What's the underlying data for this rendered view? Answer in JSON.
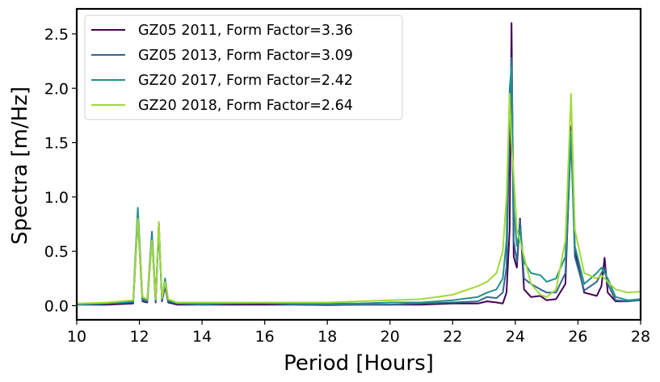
{
  "chart_data": {
    "type": "line",
    "xlabel": "Period [Hours]",
    "ylabel": "Spectra [m/Hz]",
    "xlim": [
      10,
      28
    ],
    "ylim": [
      -0.13,
      2.73
    ],
    "xticks": [
      10,
      12,
      14,
      16,
      18,
      20,
      22,
      24,
      26,
      28
    ],
    "xtick_labels": [
      "10",
      "12",
      "14",
      "16",
      "18",
      "20",
      "22",
      "24",
      "26",
      "28"
    ],
    "yticks": [
      0.0,
      0.5,
      1.0,
      1.5,
      2.0,
      2.5
    ],
    "ytick_labels": [
      "0.0",
      "0.5",
      "1.0",
      "1.5",
      "2.0",
      "2.5"
    ],
    "grid": false,
    "legend_position": "top-left",
    "series": [
      {
        "name": "GZ05 2011, Form Factor=3.36",
        "color": "#440154",
        "points": [
          [
            10,
            0.01
          ],
          [
            11,
            0.01
          ],
          [
            11.8,
            0.02
          ],
          [
            11.95,
            0.8
          ],
          [
            12.1,
            0.04
          ],
          [
            12.25,
            0.03
          ],
          [
            12.4,
            0.62
          ],
          [
            12.52,
            0.03
          ],
          [
            12.62,
            0.76
          ],
          [
            12.72,
            0.04
          ],
          [
            12.82,
            0.18
          ],
          [
            12.92,
            0.03
          ],
          [
            13.2,
            0.01
          ],
          [
            14,
            0.01
          ],
          [
            15,
            0.01
          ],
          [
            16,
            0.01
          ],
          [
            17,
            0.01
          ],
          [
            18,
            0.005
          ],
          [
            19,
            0.01
          ],
          [
            20,
            0.01
          ],
          [
            21,
            0.01
          ],
          [
            22,
            0.02
          ],
          [
            22.8,
            0.02
          ],
          [
            23.1,
            0.04
          ],
          [
            23.4,
            0.03
          ],
          [
            23.6,
            0.02
          ],
          [
            23.72,
            0.12
          ],
          [
            23.82,
            0.7
          ],
          [
            23.88,
            2.6
          ],
          [
            23.95,
            0.45
          ],
          [
            24.05,
            0.35
          ],
          [
            24.15,
            0.8
          ],
          [
            24.28,
            0.15
          ],
          [
            24.5,
            0.08
          ],
          [
            24.8,
            0.09
          ],
          [
            25.0,
            0.05
          ],
          [
            25.3,
            0.06
          ],
          [
            25.6,
            0.2
          ],
          [
            25.78,
            1.65
          ],
          [
            25.9,
            0.5
          ],
          [
            26.2,
            0.12
          ],
          [
            26.6,
            0.09
          ],
          [
            26.75,
            0.18
          ],
          [
            26.85,
            0.44
          ],
          [
            26.95,
            0.12
          ],
          [
            27.2,
            0.04
          ],
          [
            27.6,
            0.04
          ],
          [
            28,
            0.06
          ]
        ]
      },
      {
        "name": "GZ05 2013, Form Factor=3.09",
        "color": "#31688e",
        "points": [
          [
            10,
            0.01
          ],
          [
            11,
            0.02
          ],
          [
            11.8,
            0.03
          ],
          [
            11.95,
            0.85
          ],
          [
            12.1,
            0.05
          ],
          [
            12.25,
            0.04
          ],
          [
            12.4,
            0.68
          ],
          [
            12.52,
            0.04
          ],
          [
            12.62,
            0.75
          ],
          [
            12.72,
            0.05
          ],
          [
            12.82,
            0.2
          ],
          [
            12.92,
            0.04
          ],
          [
            13.2,
            0.02
          ],
          [
            14,
            0.01
          ],
          [
            15,
            0.02
          ],
          [
            16,
            0.02
          ],
          [
            17,
            0.01
          ],
          [
            18,
            0.01
          ],
          [
            19,
            0.01
          ],
          [
            20,
            0.01
          ],
          [
            21,
            0.02
          ],
          [
            22,
            0.03
          ],
          [
            22.8,
            0.04
          ],
          [
            23.1,
            0.08
          ],
          [
            23.4,
            0.07
          ],
          [
            23.6,
            0.12
          ],
          [
            23.72,
            0.35
          ],
          [
            23.82,
            1.7
          ],
          [
            23.88,
            2.28
          ],
          [
            23.95,
            0.6
          ],
          [
            24.05,
            0.4
          ],
          [
            24.15,
            0.78
          ],
          [
            24.28,
            0.25
          ],
          [
            24.5,
            0.2
          ],
          [
            24.8,
            0.15
          ],
          [
            25.0,
            0.12
          ],
          [
            25.3,
            0.12
          ],
          [
            25.6,
            0.3
          ],
          [
            25.78,
            1.55
          ],
          [
            25.9,
            0.45
          ],
          [
            26.2,
            0.14
          ],
          [
            26.6,
            0.22
          ],
          [
            26.75,
            0.3
          ],
          [
            26.85,
            0.35
          ],
          [
            26.95,
            0.2
          ],
          [
            27.2,
            0.05
          ],
          [
            27.6,
            0.04
          ],
          [
            28,
            0.05
          ]
        ]
      },
      {
        "name": "GZ20 2017, Form Factor=2.42",
        "color": "#21918c",
        "points": [
          [
            10,
            0.01
          ],
          [
            11,
            0.02
          ],
          [
            11.8,
            0.04
          ],
          [
            11.95,
            0.9
          ],
          [
            12.1,
            0.06
          ],
          [
            12.25,
            0.05
          ],
          [
            12.4,
            0.66
          ],
          [
            12.52,
            0.05
          ],
          [
            12.62,
            0.72
          ],
          [
            12.72,
            0.06
          ],
          [
            12.82,
            0.25
          ],
          [
            12.92,
            0.05
          ],
          [
            13.2,
            0.02
          ],
          [
            14,
            0.02
          ],
          [
            15,
            0.02
          ],
          [
            16,
            0.03
          ],
          [
            17,
            0.02
          ],
          [
            18,
            0.02
          ],
          [
            19,
            0.02
          ],
          [
            20,
            0.03
          ],
          [
            21,
            0.03
          ],
          [
            22,
            0.05
          ],
          [
            22.8,
            0.08
          ],
          [
            23.1,
            0.12
          ],
          [
            23.4,
            0.15
          ],
          [
            23.6,
            0.25
          ],
          [
            23.72,
            0.6
          ],
          [
            23.82,
            2.0
          ],
          [
            23.88,
            2.2
          ],
          [
            23.95,
            0.9
          ],
          [
            24.05,
            0.55
          ],
          [
            24.15,
            0.7
          ],
          [
            24.28,
            0.4
          ],
          [
            24.5,
            0.3
          ],
          [
            24.8,
            0.28
          ],
          [
            25.0,
            0.22
          ],
          [
            25.3,
            0.25
          ],
          [
            25.6,
            0.45
          ],
          [
            25.78,
            1.6
          ],
          [
            25.9,
            0.55
          ],
          [
            26.2,
            0.2
          ],
          [
            26.6,
            0.3
          ],
          [
            26.75,
            0.35
          ],
          [
            26.85,
            0.3
          ],
          [
            26.95,
            0.25
          ],
          [
            27.2,
            0.08
          ],
          [
            27.6,
            0.05
          ],
          [
            28,
            0.06
          ]
        ]
      },
      {
        "name": "GZ20 2018, Form Factor=2.64",
        "color": "#a0da39",
        "points": [
          [
            10,
            0.02
          ],
          [
            11,
            0.03
          ],
          [
            11.8,
            0.05
          ],
          [
            11.95,
            0.8
          ],
          [
            12.1,
            0.08
          ],
          [
            12.25,
            0.06
          ],
          [
            12.4,
            0.6
          ],
          [
            12.52,
            0.06
          ],
          [
            12.62,
            0.77
          ],
          [
            12.72,
            0.07
          ],
          [
            12.82,
            0.22
          ],
          [
            12.92,
            0.06
          ],
          [
            13.2,
            0.03
          ],
          [
            14,
            0.03
          ],
          [
            15,
            0.03
          ],
          [
            16,
            0.03
          ],
          [
            17,
            0.03
          ],
          [
            18,
            0.03
          ],
          [
            19,
            0.04
          ],
          [
            20,
            0.05
          ],
          [
            21,
            0.06
          ],
          [
            22,
            0.1
          ],
          [
            22.8,
            0.18
          ],
          [
            23.1,
            0.22
          ],
          [
            23.4,
            0.3
          ],
          [
            23.6,
            0.5
          ],
          [
            23.72,
            1.0
          ],
          [
            23.82,
            1.95
          ],
          [
            23.88,
            1.5
          ],
          [
            23.95,
            1.2
          ],
          [
            24.05,
            0.7
          ],
          [
            24.15,
            0.6
          ],
          [
            24.28,
            0.45
          ],
          [
            24.5,
            0.2
          ],
          [
            24.8,
            0.1
          ],
          [
            25.0,
            0.08
          ],
          [
            25.3,
            0.15
          ],
          [
            25.6,
            0.6
          ],
          [
            25.78,
            1.95
          ],
          [
            25.9,
            0.7
          ],
          [
            26.2,
            0.3
          ],
          [
            26.6,
            0.25
          ],
          [
            26.75,
            0.28
          ],
          [
            26.85,
            0.25
          ],
          [
            26.95,
            0.22
          ],
          [
            27.2,
            0.15
          ],
          [
            27.6,
            0.12
          ],
          [
            28,
            0.13
          ]
        ]
      }
    ]
  }
}
